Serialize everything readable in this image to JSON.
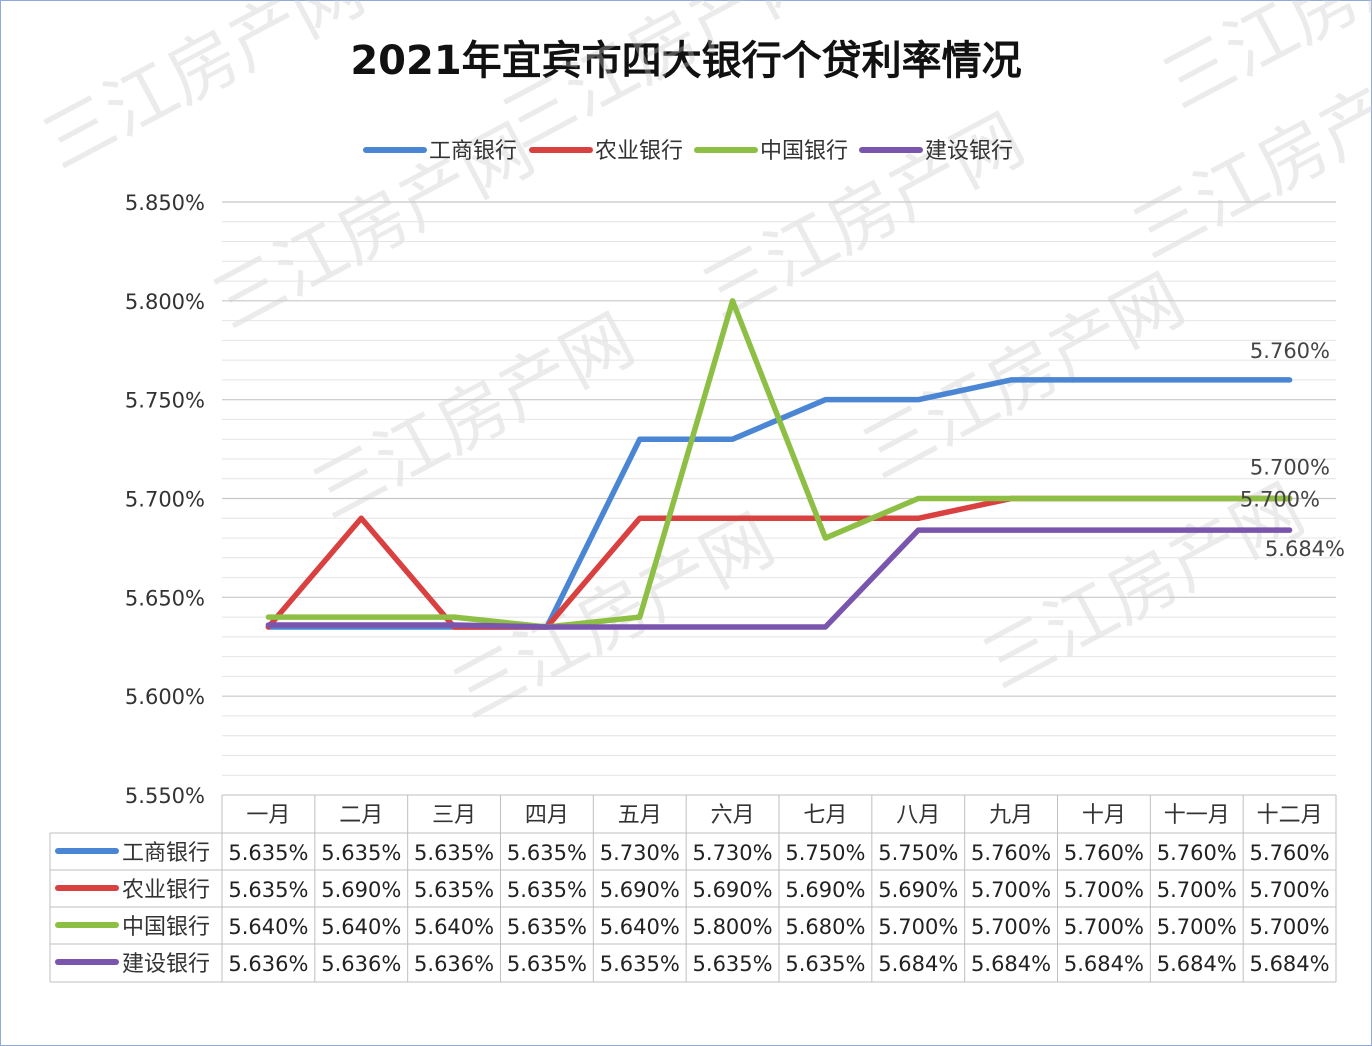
{
  "chart_data": {
    "type": "line",
    "title": "2021年宜宾市四大银行个贷利率情况",
    "categories": [
      "一月",
      "二月",
      "三月",
      "四月",
      "五月",
      "六月",
      "七月",
      "八月",
      "九月",
      "十月",
      "十一月",
      "十二月"
    ],
    "ylim": [
      5.55,
      5.85
    ],
    "y_ticks": [
      "5.550%",
      "5.600%",
      "5.650%",
      "5.700%",
      "5.750%",
      "5.800%",
      "5.850%"
    ],
    "grid": true,
    "legend_position": "top",
    "series": [
      {
        "name": "工商银行",
        "color": "#4a86d3",
        "values": [
          5.635,
          5.635,
          5.635,
          5.635,
          5.73,
          5.73,
          5.75,
          5.75,
          5.76,
          5.76,
          5.76,
          5.76
        ],
        "labels": [
          "5.635%",
          "5.635%",
          "5.635%",
          "5.635%",
          "5.730%",
          "5.730%",
          "5.750%",
          "5.750%",
          "5.760%",
          "5.760%",
          "5.760%",
          "5.760%"
        ],
        "end_label": "5.760%"
      },
      {
        "name": "农业银行",
        "color": "#d94040",
        "values": [
          5.635,
          5.69,
          5.635,
          5.635,
          5.69,
          5.69,
          5.69,
          5.69,
          5.7,
          5.7,
          5.7,
          5.7
        ],
        "labels": [
          "5.635%",
          "5.690%",
          "5.635%",
          "5.635%",
          "5.690%",
          "5.690%",
          "5.690%",
          "5.690%",
          "5.700%",
          "5.700%",
          "5.700%",
          "5.700%"
        ],
        "end_label": "5.700%"
      },
      {
        "name": "中国银行",
        "color": "#8dbf45",
        "values": [
          5.64,
          5.64,
          5.64,
          5.635,
          5.64,
          5.8,
          5.68,
          5.7,
          5.7,
          5.7,
          5.7,
          5.7
        ],
        "labels": [
          "5.640%",
          "5.640%",
          "5.640%",
          "5.635%",
          "5.640%",
          "5.800%",
          "5.680%",
          "5.700%",
          "5.700%",
          "5.700%",
          "5.700%",
          "5.700%"
        ],
        "end_label": "5.700%"
      },
      {
        "name": "建设银行",
        "color": "#7a55ad",
        "values": [
          5.636,
          5.636,
          5.636,
          5.635,
          5.635,
          5.635,
          5.635,
          5.684,
          5.684,
          5.684,
          5.684,
          5.684
        ],
        "labels": [
          "5.636%",
          "5.636%",
          "5.636%",
          "5.635%",
          "5.635%",
          "5.635%",
          "5.635%",
          "5.684%",
          "5.684%",
          "5.684%",
          "5.684%",
          "5.684%"
        ],
        "end_label": "5.684%"
      }
    ]
  },
  "watermark": "三江房产网"
}
